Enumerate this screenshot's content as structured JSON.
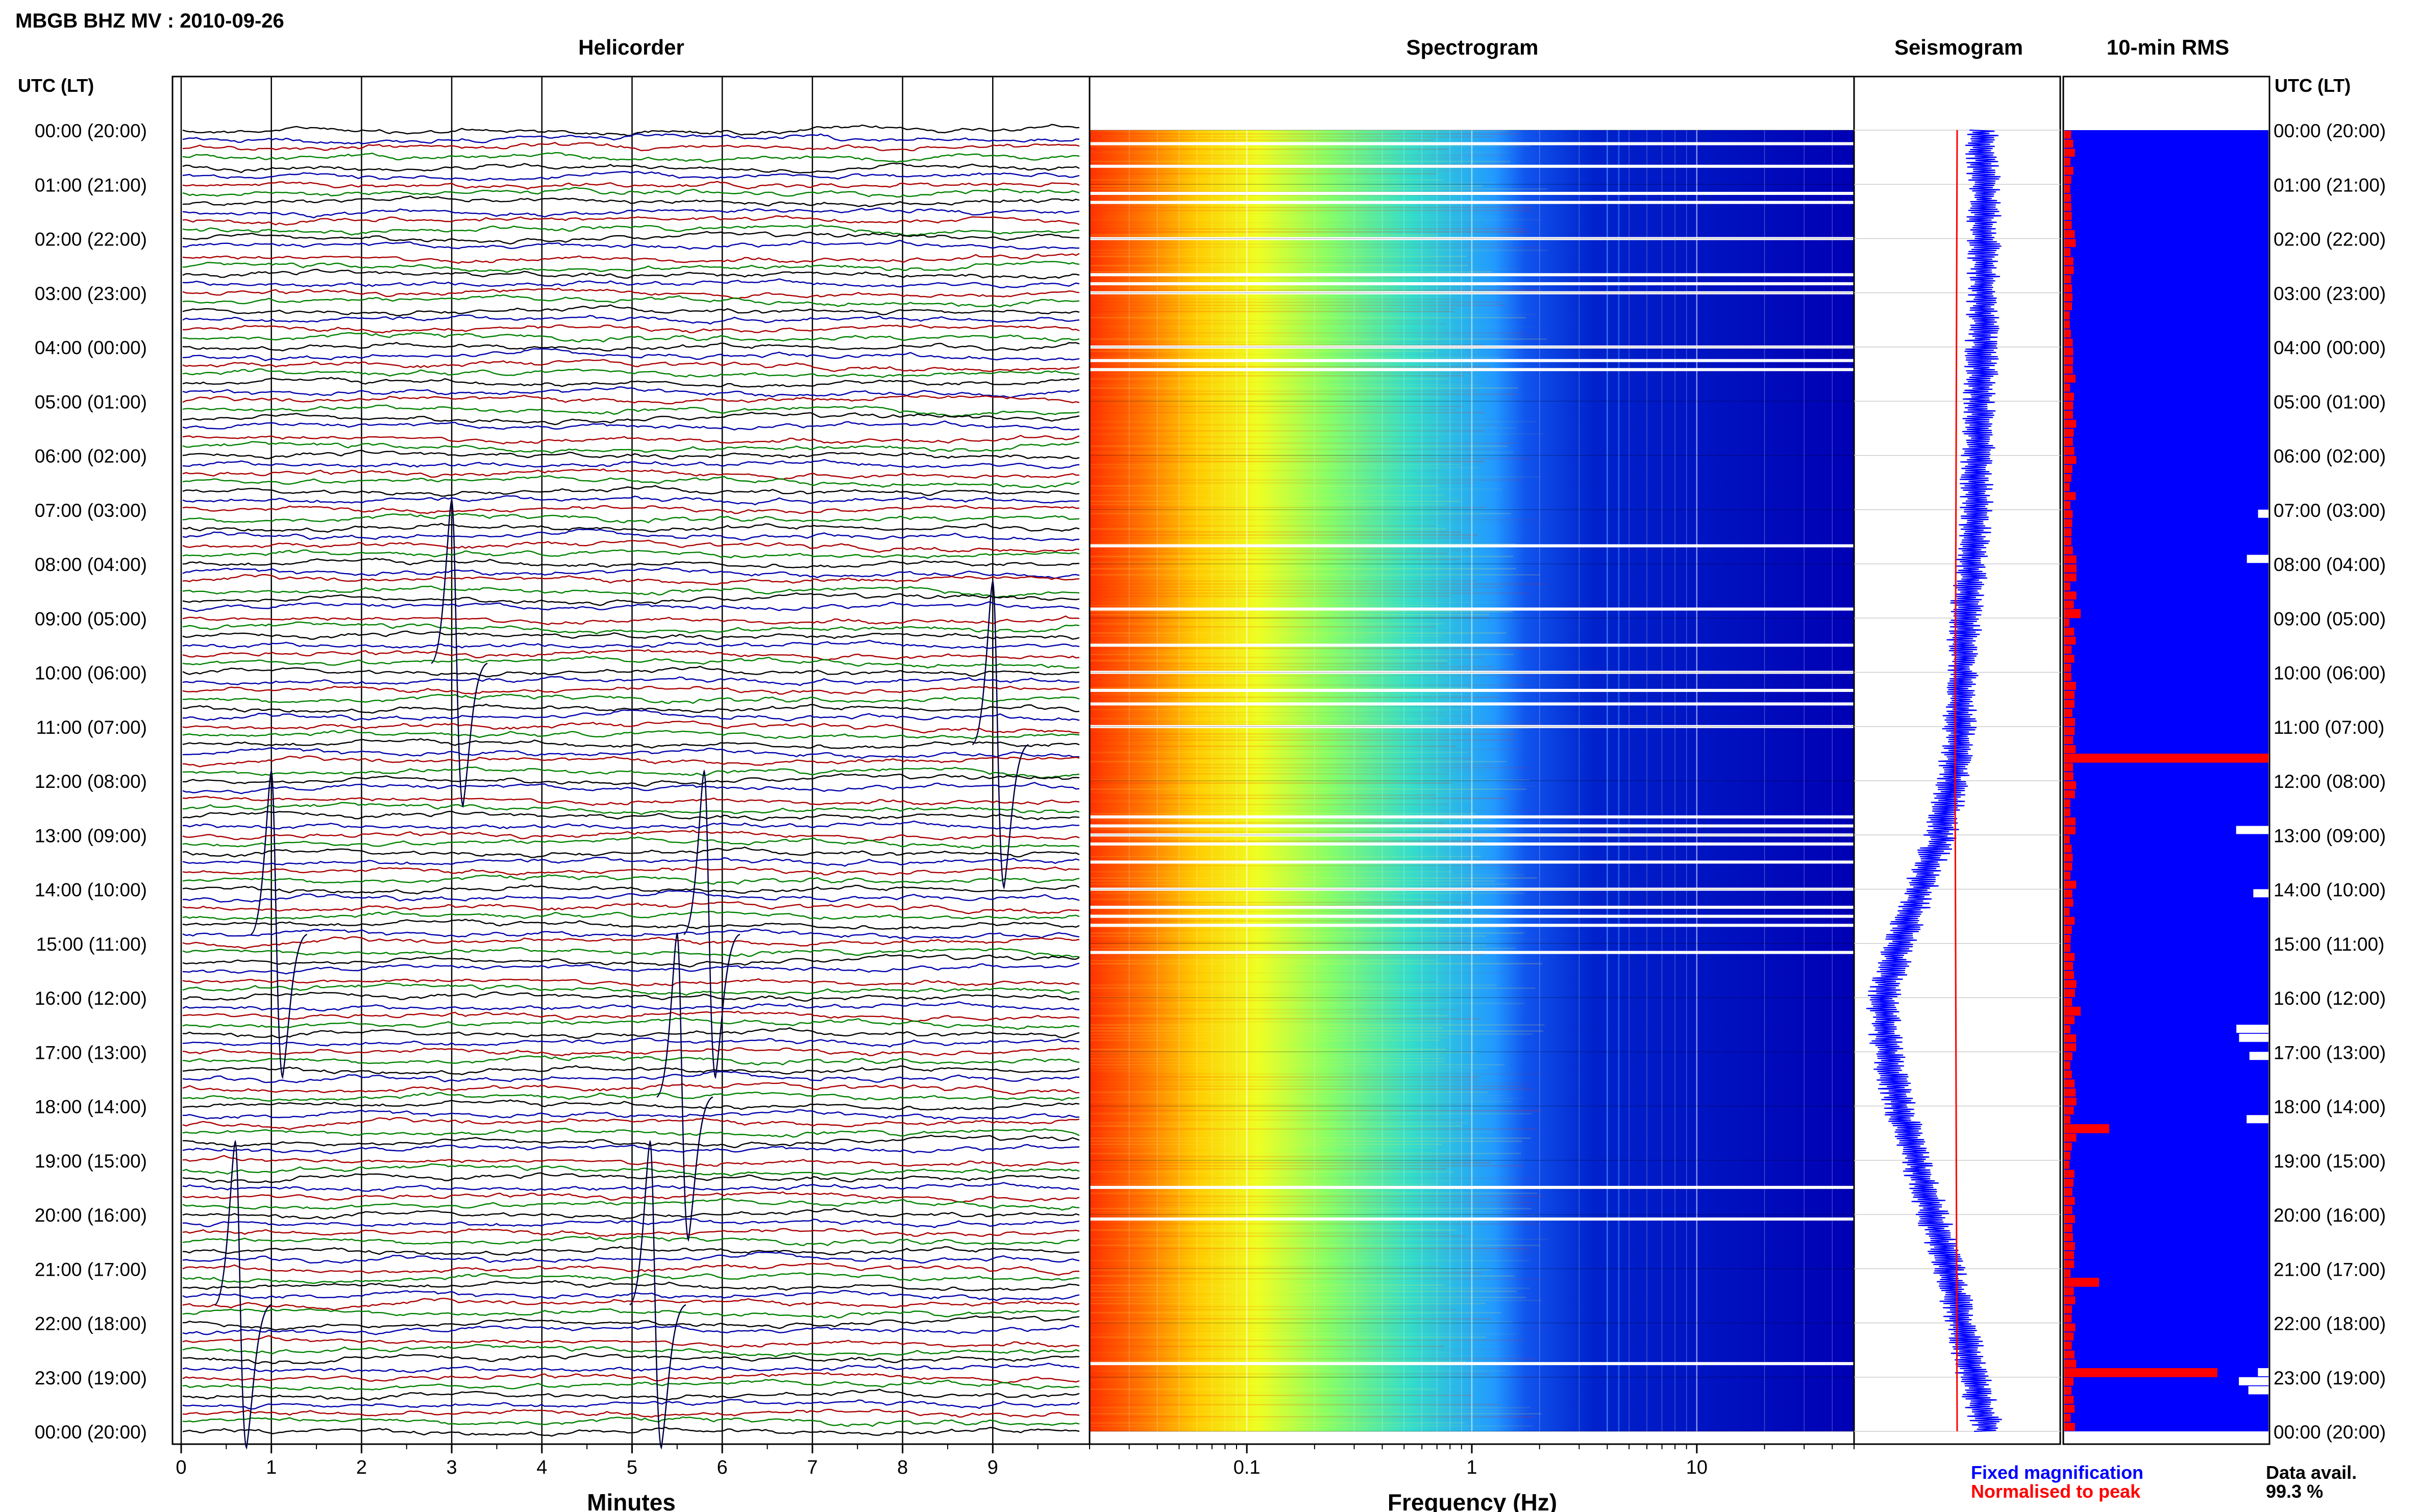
{
  "header": {
    "title": "MBGB BHZ MV : 2010-09-26",
    "panels": [
      "Helicorder",
      "Spectrogram",
      "Seismogram",
      "10-min RMS"
    ]
  },
  "time_axis": {
    "label_left": "UTC (LT)",
    "label_right": "UTC (LT)",
    "ticks": [
      "00:00 (20:00)",
      "01:00 (21:00)",
      "02:00 (22:00)",
      "03:00 (23:00)",
      "04:00 (00:00)",
      "05:00 (01:00)",
      "06:00 (02:00)",
      "07:00 (03:00)",
      "08:00 (04:00)",
      "09:00 (05:00)",
      "10:00 (06:00)",
      "11:00 (07:00)",
      "12:00 (08:00)",
      "13:00 (09:00)",
      "14:00 (10:00)",
      "15:00 (11:00)",
      "16:00 (12:00)",
      "17:00 (13:00)",
      "18:00 (14:00)",
      "19:00 (15:00)",
      "20:00 (16:00)",
      "21:00 (17:00)",
      "22:00 (18:00)",
      "23:00 (19:00)",
      "00:00 (20:00)"
    ]
  },
  "legend": {
    "fixed": "Fixed magnification",
    "normalised": "Normalised to peak",
    "fixed_color": "#0000ff",
    "normalised_color": "#ff0000"
  },
  "availability": {
    "label": "Data avail.",
    "value": "99.3 %"
  },
  "colors": {
    "trace": [
      "#000000",
      "#0000aa",
      "#aa0000",
      "#008000"
    ],
    "rms_fill": "#0000ff",
    "rms_bar": "#ff0000"
  },
  "chart_data": [
    {
      "type": "line",
      "title": "Helicorder",
      "xlabel": "Minutes",
      "x_ticks": [
        "0",
        "1",
        "2",
        "3",
        "4",
        "5",
        "6",
        "7",
        "8",
        "9"
      ],
      "xlim": [
        0,
        10
      ],
      "rows_per_hour": 6,
      "series_colors_cycle": [
        "black",
        "blue",
        "red",
        "green"
      ],
      "events": [
        {
          "time_utc": "09:50",
          "minute": 3.0
        },
        {
          "time_utc": "11:20",
          "minute": 9.0
        },
        {
          "time_utc": "14:50",
          "minute": 1.0
        },
        {
          "time_utc": "14:50",
          "minute": 5.8
        },
        {
          "time_utc": "17:50",
          "minute": 5.5
        },
        {
          "time_utc": "21:40",
          "minute": 0.6
        },
        {
          "time_utc": "21:40",
          "minute": 5.2
        }
      ]
    },
    {
      "type": "heatmap",
      "title": "Spectrogram",
      "xlabel": "Frequency (Hz)",
      "x_scale": "log",
      "x_ticks": [
        "0.1",
        "1",
        "10"
      ],
      "xlim": [
        0.02,
        50
      ],
      "colormap": [
        "#ff3300",
        "#ff8800",
        "#ffee00",
        "#aaff44",
        "#44eecc",
        "#22aaff",
        "#1155ee",
        "#0000bb"
      ],
      "gaps_utc": [
        "00:15",
        "00:40",
        "01:10",
        "01:20",
        "02:00",
        "02:40",
        "02:50",
        "03:00",
        "04:00",
        "04:15",
        "04:25",
        "07:40",
        "08:50",
        "09:30",
        "10:00",
        "10:20",
        "10:35",
        "11:00",
        "12:40",
        "12:50",
        "13:00",
        "13:10",
        "13:30",
        "14:00",
        "14:20",
        "14:30",
        "14:40",
        "15:10",
        "19:30",
        "20:05",
        "22:45"
      ],
      "spectral_peaks_hz": [
        4.0,
        4.5
      ]
    },
    {
      "type": "line",
      "title": "Seismogram",
      "series": [
        {
          "name": "Fixed magnification",
          "hour": [
            0,
            1,
            2,
            3,
            4,
            5,
            6,
            7,
            8,
            9,
            10,
            11,
            12,
            13,
            14,
            15,
            16,
            17,
            18,
            19,
            20,
            21,
            22,
            23,
            24
          ],
          "amplitude": [
            0.62,
            0.63,
            0.63,
            0.63,
            0.62,
            0.61,
            0.6,
            0.59,
            0.57,
            0.54,
            0.52,
            0.51,
            0.48,
            0.42,
            0.32,
            0.22,
            0.14,
            0.16,
            0.22,
            0.3,
            0.38,
            0.46,
            0.52,
            0.58,
            0.65
          ]
        },
        {
          "name": "Normalised to peak",
          "hour": [
            0,
            12,
            24
          ],
          "amplitude": [
            0.5,
            0.49,
            0.5
          ]
        }
      ],
      "ylim": [
        0,
        24
      ]
    },
    {
      "type": "bar",
      "title": "10-min RMS",
      "hour_labels": [
        "00:00",
        "03:00",
        "06:00",
        "09:00",
        "12:00",
        "15:00",
        "18:00",
        "21:00",
        "24:00"
      ],
      "rms_peaks": [
        {
          "time_utc": "11:30",
          "relative": 1.0
        },
        {
          "time_utc": "18:20",
          "relative": 0.22
        },
        {
          "time_utc": "21:10",
          "relative": 0.17
        },
        {
          "time_utc": "22:50",
          "relative": 0.75
        },
        {
          "time_utc": "08:50",
          "relative": 0.08
        },
        {
          "time_utc": "16:10",
          "relative": 0.08
        }
      ],
      "data_gaps_utc": [
        "07:00",
        "07:50",
        "12:50",
        "14:00",
        "16:30",
        "16:40",
        "17:00",
        "18:10",
        "22:50",
        "23:00",
        "23:10"
      ]
    }
  ]
}
